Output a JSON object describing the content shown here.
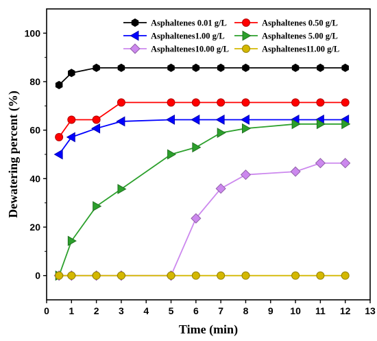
{
  "chart_data": {
    "type": "line",
    "title": "",
    "xlabel": "Time (min)",
    "ylabel": "Dewatering percent (%)",
    "xlim": [
      0,
      13
    ],
    "ylim": [
      -10,
      110
    ],
    "xticks": [
      0,
      1,
      2,
      3,
      4,
      5,
      6,
      7,
      8,
      9,
      10,
      11,
      12,
      13
    ],
    "yticks": [
      0,
      20,
      40,
      60,
      80,
      100
    ],
    "grid": false,
    "legend": "top",
    "series": [
      {
        "name": "Asphaltenes 0.01 g/L",
        "color": "#000000",
        "marker": "hexagon",
        "x": [
          0.5,
          1,
          2,
          3,
          5,
          6,
          7,
          8,
          10,
          11,
          12
        ],
        "y": [
          78.6,
          83.6,
          85.7,
          85.7,
          85.7,
          85.7,
          85.7,
          85.7,
          85.7,
          85.7,
          85.7
        ]
      },
      {
        "name": "Asphaltenes 0.50 g/L",
        "color": "#ff0000",
        "marker": "circle",
        "x": [
          0.5,
          1,
          2,
          3,
          5,
          6,
          7,
          8,
          10,
          11,
          12
        ],
        "y": [
          57.1,
          64.3,
          64.3,
          71.4,
          71.4,
          71.4,
          71.4,
          71.4,
          71.4,
          71.4,
          71.4
        ]
      },
      {
        "name": "Asphaltenes1.00 g/L",
        "color": "#0000ff",
        "marker": "triangle-left",
        "x": [
          0.5,
          1,
          2,
          3,
          5,
          6,
          7,
          8,
          10,
          11,
          12
        ],
        "y": [
          50,
          57.1,
          60.7,
          63.6,
          64.3,
          64.3,
          64.3,
          64.3,
          64.3,
          64.3,
          64.3
        ]
      },
      {
        "name": "Asphaltenes 5.00 g/L",
        "color": "#2ca02c",
        "marker": "triangle-right",
        "x": [
          0.5,
          1,
          2,
          3,
          5,
          6,
          7,
          8,
          10,
          11,
          12
        ],
        "y": [
          0,
          14.3,
          28.6,
          35.7,
          50,
          52.9,
          58.9,
          60.7,
          62.5,
          62.5,
          62.5
        ]
      },
      {
        "name": "Asphaltenes10.00 g/L",
        "color": "#cc88ee",
        "marker": "diamond",
        "x": [
          0.5,
          1,
          2,
          3,
          5,
          6,
          7,
          8,
          10,
          11,
          12
        ],
        "y": [
          0,
          0,
          0,
          0,
          0,
          23.6,
          35.9,
          41.6,
          42.9,
          46.4,
          46.4
        ]
      },
      {
        "name": "Asphaltenes11.00 g/L",
        "color": "#d4b800",
        "marker": "circle",
        "x": [
          0.5,
          1,
          2,
          3,
          5,
          6,
          7,
          8,
          10,
          11,
          12
        ],
        "y": [
          0,
          0,
          0,
          0,
          0,
          0,
          0,
          0,
          0,
          0,
          0
        ]
      }
    ]
  }
}
